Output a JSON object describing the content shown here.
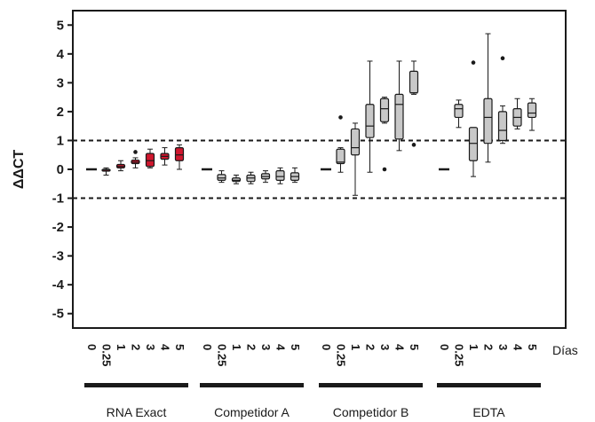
{
  "chart_data": {
    "type": "box",
    "ylabel": "ΔΔCT",
    "ylim": [
      -5.5,
      5.5
    ],
    "yticks": [
      "5",
      "4",
      "3",
      "2",
      "1",
      "0",
      "-1",
      "-2",
      "-3",
      "-4",
      "-5"
    ],
    "ytick_values": [
      5,
      4,
      3,
      2,
      1,
      0,
      -1,
      -2,
      -3,
      -4,
      -5
    ],
    "x_ticklabels": [
      "0",
      "0.25",
      "1",
      "2",
      "3",
      "4",
      "5"
    ],
    "x_axis_unit": "Días",
    "reference_lines": [
      1,
      -1
    ],
    "reference_line_style": "dashed",
    "colors": {
      "highlight_box": "#d0172e",
      "box": "#c8c8c8",
      "line": "#1a1a1a"
    },
    "groups": [
      {
        "name": "RNA Exact",
        "fill": "#d0172e",
        "boxes": [
          {
            "day": "0",
            "min": 0.0,
            "q1": 0.0,
            "median": 0.0,
            "q3": 0.0,
            "max": 0.0,
            "outliers": []
          },
          {
            "day": "0.25",
            "min": -0.2,
            "q1": -0.05,
            "median": -0.02,
            "q3": 0.0,
            "max": 0.05,
            "outliers": []
          },
          {
            "day": "1",
            "min": -0.05,
            "q1": 0.05,
            "median": 0.1,
            "q3": 0.17,
            "max": 0.3,
            "outliers": []
          },
          {
            "day": "2",
            "min": 0.05,
            "q1": 0.2,
            "median": 0.25,
            "q3": 0.32,
            "max": 0.4,
            "outliers": [
              0.6
            ]
          },
          {
            "day": "3",
            "min": 0.05,
            "q1": 0.1,
            "median": 0.3,
            "q3": 0.55,
            "max": 0.7,
            "outliers": []
          },
          {
            "day": "4",
            "min": 0.15,
            "q1": 0.35,
            "median": 0.45,
            "q3": 0.55,
            "max": 0.75,
            "outliers": []
          },
          {
            "day": "5",
            "min": 0.0,
            "q1": 0.3,
            "median": 0.5,
            "q3": 0.75,
            "max": 0.85,
            "outliers": []
          }
        ]
      },
      {
        "name": "Competidor A",
        "fill": "#c8c8c8",
        "boxes": [
          {
            "day": "0",
            "min": 0.0,
            "q1": 0.0,
            "median": 0.0,
            "q3": 0.0,
            "max": 0.0,
            "outliers": []
          },
          {
            "day": "0.25",
            "min": -0.45,
            "q1": -0.38,
            "median": -0.3,
            "q3": -0.18,
            "max": -0.05,
            "outliers": []
          },
          {
            "day": "1",
            "min": -0.5,
            "q1": -0.42,
            "median": -0.38,
            "q3": -0.3,
            "max": -0.2,
            "outliers": []
          },
          {
            "day": "2",
            "min": -0.5,
            "q1": -0.42,
            "median": -0.3,
            "q3": -0.2,
            "max": -0.1,
            "outliers": []
          },
          {
            "day": "3",
            "min": -0.45,
            "q1": -0.33,
            "median": -0.25,
            "q3": -0.15,
            "max": -0.05,
            "outliers": []
          },
          {
            "day": "4",
            "min": -0.5,
            "q1": -0.38,
            "median": -0.25,
            "q3": -0.05,
            "max": 0.05,
            "outliers": []
          },
          {
            "day": "5",
            "min": -0.45,
            "q1": -0.38,
            "median": -0.25,
            "q3": -0.12,
            "max": 0.05,
            "outliers": []
          }
        ]
      },
      {
        "name": "Competidor B",
        "fill": "#c8c8c8",
        "boxes": [
          {
            "day": "0",
            "min": 0.0,
            "q1": 0.0,
            "median": 0.0,
            "q3": 0.0,
            "max": 0.0,
            "outliers": []
          },
          {
            "day": "0.25",
            "min": -0.1,
            "q1": 0.2,
            "median": 0.25,
            "q3": 0.7,
            "max": 0.75,
            "outliers": [
              1.8
            ]
          },
          {
            "day": "1",
            "min": -0.9,
            "q1": 0.5,
            "median": 0.75,
            "q3": 1.4,
            "max": 1.6,
            "outliers": []
          },
          {
            "day": "2",
            "min": -0.1,
            "q1": 1.1,
            "median": 1.5,
            "q3": 2.25,
            "max": 3.75,
            "outliers": []
          },
          {
            "day": "3",
            "min": 1.6,
            "q1": 1.65,
            "median": 2.1,
            "q3": 2.45,
            "max": 2.5,
            "outliers": [
              0.0
            ]
          },
          {
            "day": "4",
            "min": 0.65,
            "q1": 1.05,
            "median": 2.25,
            "q3": 2.6,
            "max": 3.75,
            "outliers": []
          },
          {
            "day": "5",
            "min": 2.6,
            "q1": 2.65,
            "median": 2.65,
            "q3": 3.4,
            "max": 3.75,
            "outliers": [
              0.85
            ]
          }
        ]
      },
      {
        "name": "EDTA",
        "fill": "#c8c8c8",
        "boxes": [
          {
            "day": "0",
            "min": 0.0,
            "q1": 0.0,
            "median": 0.0,
            "q3": 0.0,
            "max": 0.0,
            "outliers": []
          },
          {
            "day": "0.25",
            "min": 1.45,
            "q1": 1.8,
            "median": 2.1,
            "q3": 2.25,
            "max": 2.4,
            "outliers": []
          },
          {
            "day": "1",
            "min": -0.25,
            "q1": 0.3,
            "median": 0.9,
            "q3": 1.45,
            "max": 1.45,
            "outliers": [
              3.7
            ]
          },
          {
            "day": "2",
            "min": 0.25,
            "q1": 0.9,
            "median": 1.8,
            "q3": 2.45,
            "max": 4.7,
            "outliers": []
          },
          {
            "day": "3",
            "min": 0.9,
            "q1": 1.0,
            "median": 1.35,
            "q3": 2.0,
            "max": 2.2,
            "outliers": [
              3.85
            ]
          },
          {
            "day": "4",
            "min": 1.4,
            "q1": 1.5,
            "median": 1.8,
            "q3": 2.1,
            "max": 2.45,
            "outliers": []
          },
          {
            "day": "5",
            "min": 1.35,
            "q1": 1.8,
            "median": 1.95,
            "q3": 2.3,
            "max": 2.45,
            "outliers": []
          }
        ]
      }
    ]
  }
}
